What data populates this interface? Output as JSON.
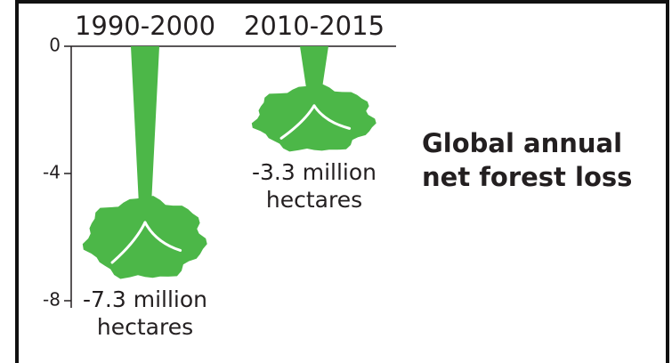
{
  "chart_data": {
    "type": "tree-bar",
    "title": "Global annual net forest loss",
    "categories": [
      "1990-2000",
      "2010-2015"
    ],
    "values": [
      -7.3,
      -3.3
    ],
    "value_labels": [
      "-7.3 million hectares",
      "-3.3 million hectares"
    ],
    "color": "#4cb748",
    "ylim": [
      -8,
      0
    ],
    "yticks": [
      0,
      -4,
      -8
    ]
  }
}
